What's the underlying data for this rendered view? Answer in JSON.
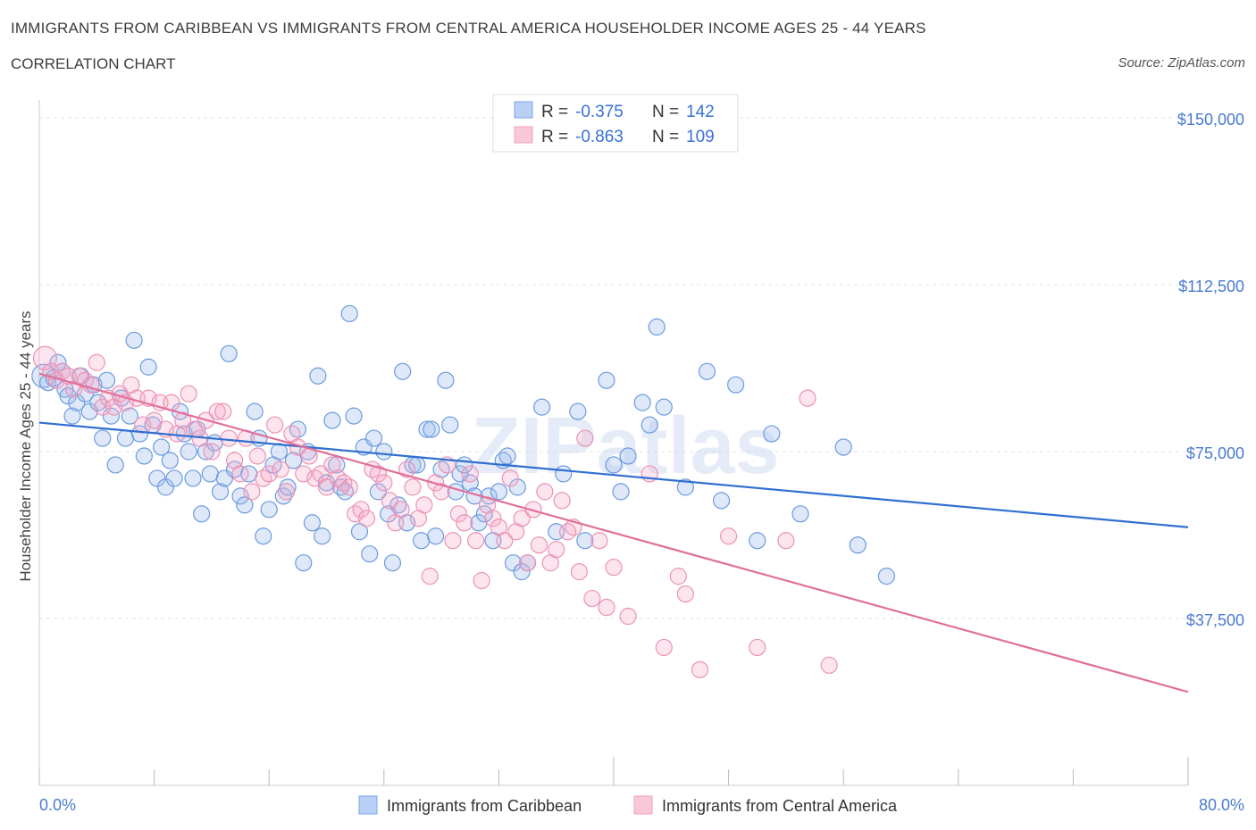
{
  "title": "IMMIGRANTS FROM CARIBBEAN VS IMMIGRANTS FROM CENTRAL AMERICA HOUSEHOLDER INCOME AGES 25 - 44 YEARS",
  "subtitle": "CORRELATION CHART",
  "source": "Source: ZipAtlas.com",
  "watermark": "ZIPatlas",
  "chart_data": {
    "type": "scatter",
    "ylabel": "Householder Income Ages 25 - 44 years",
    "xlabel": "",
    "xlim": [
      0,
      80
    ],
    "ylim": [
      0,
      150000
    ],
    "x_tick_labels": [
      "0.0%",
      "80.0%"
    ],
    "y_ticks": [
      37500,
      75000,
      112500,
      150000
    ],
    "y_tick_labels": [
      "$37,500",
      "$75,000",
      "$112,500",
      "$150,000"
    ],
    "legend": [
      {
        "name": "Immigrants from Caribbean",
        "R_label": "R =",
        "R": "-0.375",
        "N_label": "N =",
        "N": "142",
        "color": "#7aa6e8",
        "line_color": "#2f6fd0"
      },
      {
        "name": "Immigrants from Central America",
        "R_label": "R =",
        "R": "-0.863",
        "N_label": "N =",
        "N": "109",
        "color": "#f0a0bd",
        "line_color": "#e0709a"
      }
    ],
    "series": [
      {
        "name": "Immigrants from Caribbean",
        "trend": {
          "x": [
            0,
            80
          ],
          "y": [
            81500,
            58000
          ]
        },
        "points": [
          [
            0.3,
            92000
          ],
          [
            0.6,
            90500
          ],
          [
            1.0,
            91500
          ],
          [
            1.3,
            95000
          ],
          [
            1.6,
            93000
          ],
          [
            1.8,
            89000
          ],
          [
            2.0,
            87500
          ],
          [
            2.3,
            83000
          ],
          [
            2.6,
            86000
          ],
          [
            2.9,
            92000
          ],
          [
            3.2,
            88000
          ],
          [
            3.5,
            84000
          ],
          [
            3.8,
            90000
          ],
          [
            4.1,
            86000
          ],
          [
            4.4,
            78000
          ],
          [
            4.7,
            91000
          ],
          [
            5.0,
            83000
          ],
          [
            5.3,
            72000
          ],
          [
            5.7,
            87000
          ],
          [
            6.0,
            78000
          ],
          [
            6.3,
            83000
          ],
          [
            6.6,
            100000
          ],
          [
            7.0,
            79000
          ],
          [
            7.3,
            74000
          ],
          [
            7.6,
            94000
          ],
          [
            7.9,
            81000
          ],
          [
            8.2,
            69000
          ],
          [
            8.5,
            76000
          ],
          [
            8.8,
            67000
          ],
          [
            9.1,
            73000
          ],
          [
            9.4,
            69000
          ],
          [
            9.8,
            84000
          ],
          [
            10.1,
            79000
          ],
          [
            10.4,
            75000
          ],
          [
            10.7,
            69000
          ],
          [
            11.0,
            80000
          ],
          [
            11.3,
            61000
          ],
          [
            11.6,
            75000
          ],
          [
            11.9,
            70000
          ],
          [
            12.2,
            77000
          ],
          [
            12.6,
            66000
          ],
          [
            12.9,
            69000
          ],
          [
            13.2,
            97000
          ],
          [
            13.6,
            71000
          ],
          [
            14.0,
            65000
          ],
          [
            14.3,
            63000
          ],
          [
            14.6,
            70000
          ],
          [
            15.0,
            84000
          ],
          [
            15.3,
            78000
          ],
          [
            15.6,
            56000
          ],
          [
            16.0,
            62000
          ],
          [
            16.3,
            72000
          ],
          [
            16.7,
            75000
          ],
          [
            17.0,
            65000
          ],
          [
            17.3,
            67000
          ],
          [
            17.7,
            73000
          ],
          [
            18.0,
            80000
          ],
          [
            18.4,
            50000
          ],
          [
            18.7,
            75000
          ],
          [
            19.0,
            59000
          ],
          [
            19.4,
            92000
          ],
          [
            19.7,
            56000
          ],
          [
            20.0,
            68000
          ],
          [
            20.4,
            82000
          ],
          [
            20.7,
            72000
          ],
          [
            21.0,
            67000
          ],
          [
            21.3,
            66000
          ],
          [
            21.6,
            106000
          ],
          [
            21.9,
            83000
          ],
          [
            22.3,
            57000
          ],
          [
            22.6,
            76000
          ],
          [
            23.0,
            52000
          ],
          [
            23.3,
            78000
          ],
          [
            23.6,
            66000
          ],
          [
            24.0,
            75000
          ],
          [
            24.3,
            61000
          ],
          [
            24.6,
            50000
          ],
          [
            25.0,
            63000
          ],
          [
            25.3,
            93000
          ],
          [
            25.6,
            59000
          ],
          [
            26.0,
            72000
          ],
          [
            26.3,
            72000
          ],
          [
            26.6,
            55000
          ],
          [
            27.0,
            80000
          ],
          [
            27.3,
            80000
          ],
          [
            27.6,
            56000
          ],
          [
            28.0,
            71000
          ],
          [
            28.3,
            91000
          ],
          [
            28.6,
            81000
          ],
          [
            29.0,
            66000
          ],
          [
            29.3,
            70000
          ],
          [
            29.6,
            72000
          ],
          [
            30.0,
            68000
          ],
          [
            30.3,
            65000
          ],
          [
            30.6,
            59000
          ],
          [
            31.0,
            61000
          ],
          [
            31.3,
            65000
          ],
          [
            31.6,
            55000
          ],
          [
            32.0,
            66000
          ],
          [
            32.3,
            73000
          ],
          [
            32.6,
            74000
          ],
          [
            33.0,
            50000
          ],
          [
            33.3,
            67000
          ],
          [
            33.6,
            48000
          ],
          [
            34.0,
            50000
          ],
          [
            35.0,
            85000
          ],
          [
            36.0,
            57000
          ],
          [
            36.5,
            70000
          ],
          [
            37.5,
            84000
          ],
          [
            38.0,
            55000
          ],
          [
            39.5,
            91000
          ],
          [
            40.0,
            72000
          ],
          [
            40.5,
            66000
          ],
          [
            41.0,
            74000
          ],
          [
            42.0,
            86000
          ],
          [
            42.5,
            81000
          ],
          [
            43.0,
            103000
          ],
          [
            43.5,
            85000
          ],
          [
            45.0,
            67000
          ],
          [
            46.5,
            93000
          ],
          [
            47.5,
            64000
          ],
          [
            48.5,
            90000
          ],
          [
            50.0,
            55000
          ],
          [
            51.0,
            79000
          ],
          [
            53.0,
            61000
          ],
          [
            56.0,
            76000
          ],
          [
            57.0,
            54000
          ],
          [
            59.0,
            47000
          ]
        ]
      },
      {
        "name": "Immigrants from Central America",
        "trend": {
          "x": [
            0,
            80
          ],
          "y": [
            92500,
            21000
          ]
        },
        "points": [
          [
            0.4,
            96000
          ],
          [
            0.8,
            93000
          ],
          [
            1.2,
            91000
          ],
          [
            1.6,
            93000
          ],
          [
            2.0,
            92000
          ],
          [
            2.4,
            89000
          ],
          [
            2.8,
            92000
          ],
          [
            3.2,
            91000
          ],
          [
            3.6,
            90000
          ],
          [
            4.0,
            95000
          ],
          [
            4.4,
            85000
          ],
          [
            4.8,
            87000
          ],
          [
            5.2,
            85000
          ],
          [
            5.6,
            88000
          ],
          [
            6.0,
            86000
          ],
          [
            6.4,
            90000
          ],
          [
            6.8,
            87000
          ],
          [
            7.2,
            81000
          ],
          [
            7.6,
            87000
          ],
          [
            8.0,
            82000
          ],
          [
            8.4,
            86000
          ],
          [
            8.8,
            80000
          ],
          [
            9.2,
            86000
          ],
          [
            9.6,
            79000
          ],
          [
            10.0,
            82000
          ],
          [
            10.4,
            88000
          ],
          [
            10.8,
            80000
          ],
          [
            11.2,
            78000
          ],
          [
            11.6,
            82000
          ],
          [
            12.0,
            75000
          ],
          [
            12.4,
            84000
          ],
          [
            12.8,
            84000
          ],
          [
            13.2,
            78000
          ],
          [
            13.6,
            73000
          ],
          [
            14.0,
            70000
          ],
          [
            14.4,
            78000
          ],
          [
            14.8,
            66000
          ],
          [
            15.2,
            74000
          ],
          [
            15.6,
            69000
          ],
          [
            16.0,
            70000
          ],
          [
            16.4,
            81000
          ],
          [
            16.8,
            71000
          ],
          [
            17.2,
            66000
          ],
          [
            17.6,
            79000
          ],
          [
            18.0,
            76000
          ],
          [
            18.4,
            70000
          ],
          [
            18.8,
            74000
          ],
          [
            19.2,
            69000
          ],
          [
            19.6,
            70000
          ],
          [
            20.0,
            67000
          ],
          [
            20.4,
            72000
          ],
          [
            20.8,
            69000
          ],
          [
            21.2,
            68000
          ],
          [
            21.6,
            67000
          ],
          [
            22.0,
            61000
          ],
          [
            22.4,
            62000
          ],
          [
            22.8,
            60000
          ],
          [
            23.2,
            71000
          ],
          [
            23.6,
            70000
          ],
          [
            24.0,
            68000
          ],
          [
            24.4,
            64000
          ],
          [
            24.8,
            59000
          ],
          [
            25.2,
            62000
          ],
          [
            25.6,
            71000
          ],
          [
            26.0,
            67000
          ],
          [
            26.4,
            60000
          ],
          [
            26.8,
            63000
          ],
          [
            27.2,
            47000
          ],
          [
            27.6,
            68000
          ],
          [
            28.0,
            66000
          ],
          [
            28.4,
            72000
          ],
          [
            28.8,
            55000
          ],
          [
            29.2,
            61000
          ],
          [
            29.6,
            59000
          ],
          [
            30.0,
            70000
          ],
          [
            30.4,
            55000
          ],
          [
            30.8,
            46000
          ],
          [
            31.2,
            63000
          ],
          [
            31.6,
            60000
          ],
          [
            32.0,
            58000
          ],
          [
            32.4,
            55000
          ],
          [
            32.8,
            69000
          ],
          [
            33.2,
            57000
          ],
          [
            33.6,
            60000
          ],
          [
            34.0,
            50000
          ],
          [
            34.4,
            62000
          ],
          [
            34.8,
            54000
          ],
          [
            35.2,
            66000
          ],
          [
            35.6,
            50000
          ],
          [
            36.0,
            53000
          ],
          [
            36.4,
            64000
          ],
          [
            36.8,
            57000
          ],
          [
            37.2,
            58000
          ],
          [
            37.6,
            48000
          ],
          [
            38.0,
            78000
          ],
          [
            38.5,
            42000
          ],
          [
            39.0,
            55000
          ],
          [
            39.5,
            40000
          ],
          [
            40.0,
            49000
          ],
          [
            41.0,
            38000
          ],
          [
            42.5,
            70000
          ],
          [
            43.5,
            31000
          ],
          [
            44.5,
            47000
          ],
          [
            45.0,
            43000
          ],
          [
            46.0,
            26000
          ],
          [
            48.0,
            56000
          ],
          [
            50.0,
            31000
          ],
          [
            52.0,
            55000
          ],
          [
            53.5,
            87000
          ],
          [
            55.0,
            27000
          ]
        ]
      }
    ]
  }
}
